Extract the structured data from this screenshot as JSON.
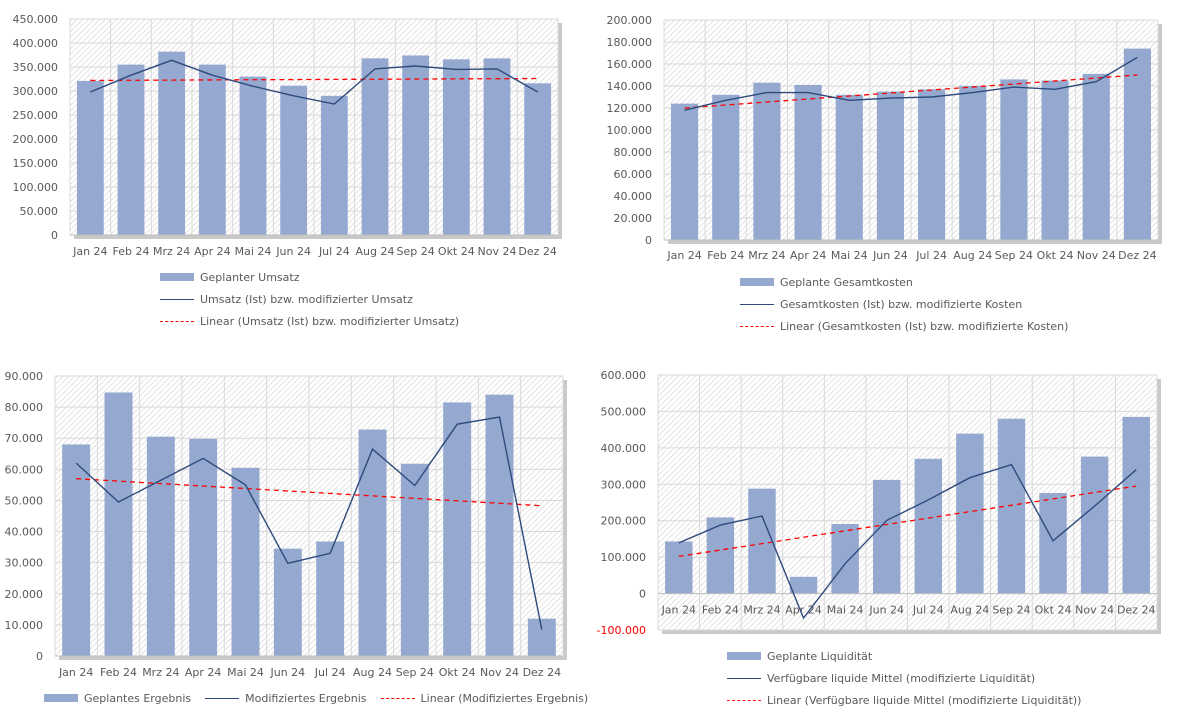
{
  "colors": {
    "bar": "#95a9d0",
    "line": "#2e4a7d",
    "trend": "#ff0000",
    "grid": "#d9d9d9",
    "negative_tick": "#ff0000"
  },
  "chart_data": [
    {
      "id": "umsatz",
      "type": "bar",
      "title": "",
      "xlabel": "",
      "ylabel": "",
      "categories": [
        "Jan 24",
        "Feb 24",
        "Mrz 24",
        "Apr 24",
        "Mai 24",
        "Jun 24",
        "Jul 24",
        "Aug 24",
        "Sep 24",
        "Okt 24",
        "Nov 24",
        "Dez 24"
      ],
      "ylim": [
        0,
        450000
      ],
      "yticks": [
        0,
        50000,
        100000,
        150000,
        200000,
        250000,
        300000,
        350000,
        400000,
        450000
      ],
      "ytick_labels": [
        "0",
        "50.000",
        "100.000",
        "150.000",
        "200.000",
        "250.000",
        "300.000",
        "350.000",
        "400.000",
        "450.000"
      ],
      "grid": true,
      "legend_placement": "bottom",
      "series": [
        {
          "name": "Geplanter Umsatz",
          "kind": "bar",
          "values": [
            321000,
            355000,
            382000,
            355000,
            330000,
            311000,
            290000,
            368000,
            374000,
            366000,
            368000,
            316000
          ]
        },
        {
          "name": "Umsatz (Ist) bzw. modifizierter Umsatz",
          "kind": "line",
          "values": [
            298000,
            333000,
            364000,
            333000,
            310000,
            290000,
            273000,
            346000,
            352000,
            345000,
            346000,
            298000
          ]
        },
        {
          "name": "Linear (Umsatz (Ist) bzw. modifizierter Umsatz)",
          "kind": "trend",
          "values": [
            322000,
            326000
          ]
        }
      ]
    },
    {
      "id": "kosten",
      "type": "bar",
      "title": "",
      "xlabel": "",
      "ylabel": "",
      "categories": [
        "Jan 24",
        "Feb 24",
        "Mrz 24",
        "Apr 24",
        "Mai 24",
        "Jun 24",
        "Jul 24",
        "Aug 24",
        "Sep 24",
        "Okt 24",
        "Nov 24",
        "Dez 24"
      ],
      "ylim": [
        0,
        200000
      ],
      "yticks": [
        0,
        20000,
        40000,
        60000,
        80000,
        100000,
        120000,
        140000,
        160000,
        180000,
        200000
      ],
      "ytick_labels": [
        "0",
        "20.000",
        "40.000",
        "60.000",
        "80.000",
        "100.000",
        "120.000",
        "140.000",
        "160.000",
        "180.000",
        "200.000"
      ],
      "grid": true,
      "legend_placement": "bottom",
      "series": [
        {
          "name": "Geplante Gesamtkosten",
          "kind": "bar",
          "values": [
            124000,
            132000,
            143000,
            141000,
            132000,
            135000,
            137000,
            140000,
            146000,
            145000,
            151000,
            174000
          ]
        },
        {
          "name": "Gesamtkosten (Ist) bzw. modifizierte Kosten",
          "kind": "line",
          "values": [
            118000,
            127000,
            134000,
            134000,
            127000,
            129000,
            130000,
            134000,
            139000,
            137000,
            144000,
            166000
          ]
        },
        {
          "name": "Linear (Gesamtkosten (Ist) bzw. modifizierte Kosten)",
          "kind": "trend",
          "values": [
            120000,
            150000
          ]
        }
      ]
    },
    {
      "id": "ergebnis",
      "type": "bar",
      "title": "",
      "xlabel": "",
      "ylabel": "",
      "categories": [
        "Jan 24",
        "Feb 24",
        "Mrz 24",
        "Apr 24",
        "Mai 24",
        "Jun 24",
        "Jul 24",
        "Aug 24",
        "Sep 24",
        "Okt 24",
        "Nov 24",
        "Dez 24"
      ],
      "ylim": [
        0,
        90000
      ],
      "yticks": [
        0,
        10000,
        20000,
        30000,
        40000,
        50000,
        60000,
        70000,
        80000,
        90000
      ],
      "ytick_labels": [
        "0",
        "10.000",
        "20.000",
        "30.000",
        "40.000",
        "50.000",
        "60.000",
        "70.000",
        "80.000",
        "90.000"
      ],
      "grid": true,
      "legend_placement": "bottom",
      "series": [
        {
          "name": "Geplantes Ergebnis",
          "kind": "bar",
          "values": [
            68000,
            84700,
            70500,
            69800,
            60500,
            34500,
            36800,
            72800,
            61800,
            81500,
            84000,
            12000
          ]
        },
        {
          "name": "Modifiziertes Ergebnis",
          "kind": "line",
          "values": [
            62000,
            49500,
            56500,
            63500,
            55000,
            29800,
            33000,
            66500,
            54800,
            74500,
            76800,
            8500
          ]
        },
        {
          "name": "Linear (Modifiziertes Ergebnis)",
          "kind": "trend",
          "values": [
            57000,
            48300
          ]
        }
      ]
    },
    {
      "id": "liquiditaet",
      "type": "bar",
      "title": "",
      "xlabel": "",
      "ylabel": "",
      "categories": [
        "Jan 24",
        "Feb 24",
        "Mrz 24",
        "Apr 24",
        "Mai 24",
        "Jun 24",
        "Jul 24",
        "Aug 24",
        "Sep 24",
        "Okt 24",
        "Nov 24",
        "Dez 24"
      ],
      "ylim": [
        -100000,
        600000
      ],
      "yticks": [
        -100000,
        0,
        100000,
        200000,
        300000,
        400000,
        500000,
        600000
      ],
      "ytick_labels": [
        "-100.000",
        "0",
        "100.000",
        "200.000",
        "300.000",
        "400.000",
        "500.000",
        "600.000"
      ],
      "grid": true,
      "legend_placement": "bottom",
      "series": [
        {
          "name": "Geplante Liquidität",
          "kind": "bar",
          "values": [
            143000,
            209000,
            288000,
            46000,
            191000,
            312000,
            370000,
            439000,
            480000,
            276000,
            376000,
            485000
          ]
        },
        {
          "name": "Verfügbare liquide Mittel (modifizierte Liquidität)",
          "kind": "line",
          "values": [
            139000,
            188000,
            213000,
            -67000,
            82000,
            201000,
            257000,
            318000,
            354000,
            145000,
            240000,
            340000
          ]
        },
        {
          "name": "Linear (Verfügbare liquide Mittel (modifizierte Liquidität))",
          "kind": "trend",
          "values": [
            102000,
            295000
          ]
        }
      ]
    }
  ]
}
